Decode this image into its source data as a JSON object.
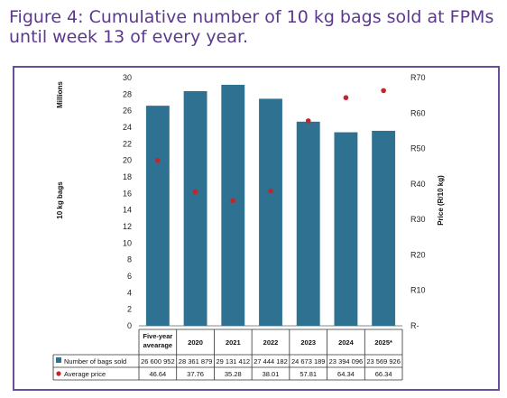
{
  "figure": {
    "title": "Figure 4: Cumulative number of 10 kg bags sold at FPMs until week 13 of every year."
  },
  "chart_data": {
    "type": "bar",
    "categories": [
      "Five-year avearage",
      "2020",
      "2021",
      "2022",
      "2023",
      "2024",
      "2025*"
    ],
    "category_lines": [
      [
        "Five-year",
        "avearage"
      ],
      [
        "2020"
      ],
      [
        "2021"
      ],
      [
        "2022"
      ],
      [
        "2023"
      ],
      [
        "2024"
      ],
      [
        "2025*"
      ]
    ],
    "series": [
      {
        "name": "Number of bags sold",
        "type": "bar",
        "axis": "left",
        "color": "#2e7190",
        "values": [
          26600952,
          28361879,
          29131412,
          27444182,
          24673189,
          23394096,
          23569926
        ],
        "labels": [
          "26 600 952",
          "28 361 879",
          "29 131 412",
          "27 444 182",
          "24 673 189",
          "23 394 096",
          "23 569 926"
        ]
      },
      {
        "name": "Average price",
        "type": "scatter",
        "axis": "right",
        "color": "#c0262c",
        "values": [
          46.64,
          37.76,
          35.28,
          38.01,
          57.81,
          64.34,
          66.34
        ],
        "labels": [
          "46.64",
          "37.76",
          "35.28",
          "38.01",
          "57.81",
          "64.34",
          "66.34"
        ]
      }
    ],
    "y_left": {
      "ticks": [
        "0",
        "2",
        "4",
        "6",
        "8",
        "10",
        "12",
        "14",
        "16",
        "18",
        "20",
        "22",
        "24",
        "26",
        "28",
        "30"
      ],
      "ylim": [
        0,
        30
      ],
      "unit_label": "Millions",
      "label": "10 kg bags"
    },
    "y_right": {
      "ticks": [
        "R-",
        "R10",
        "R20",
        "R30",
        "R40",
        "R50",
        "R60",
        "R70"
      ],
      "ylim": [
        0,
        70
      ],
      "label": "Price (R/10 kg)"
    },
    "grid": false,
    "legend": "data-table"
  },
  "colors": {
    "title": "#5b3a8e",
    "frame": "#6a4d9c",
    "bar": "#2e7190",
    "marker": "#c0262c"
  }
}
